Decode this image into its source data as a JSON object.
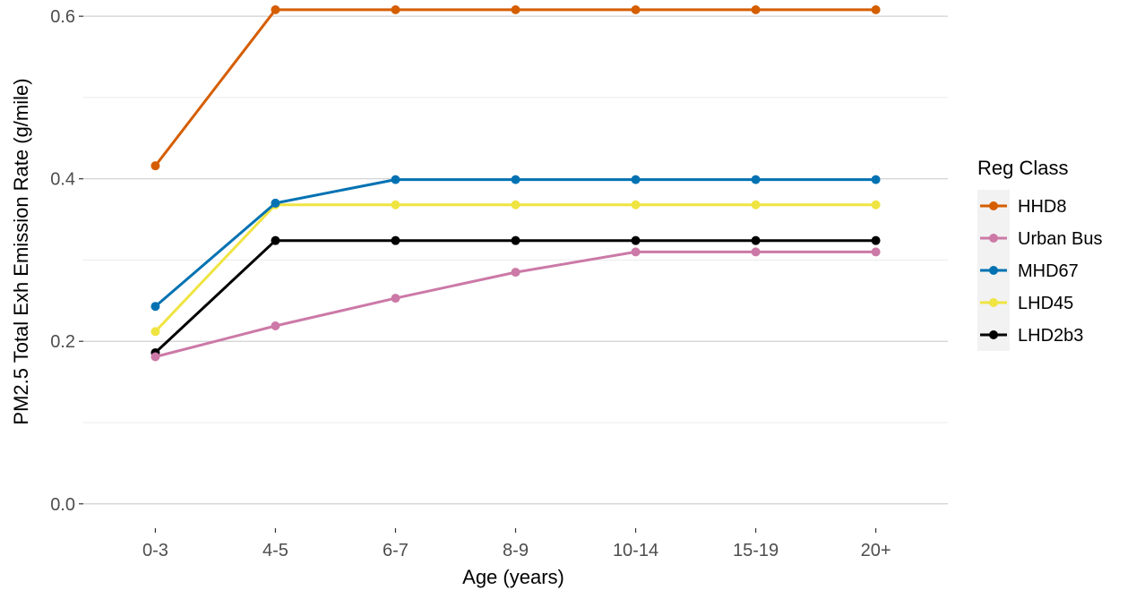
{
  "chart_data": {
    "type": "line",
    "xlabel": "Age (years)",
    "ylabel": "PM2.5 Total Exh Emission Rate (g/mile)",
    "categories": [
      "0-3",
      "4-5",
      "6-7",
      "8-9",
      "10-14",
      "15-19",
      "20+"
    ],
    "ylim": [
      -0.03,
      0.62
    ],
    "yticks": [
      0.0,
      0.2,
      0.4,
      0.6
    ],
    "ytick_labels": [
      "0.0",
      "0.2",
      "0.4",
      "0.6"
    ],
    "grid": true,
    "legend": {
      "title": "Reg Class",
      "position": "right"
    },
    "series": [
      {
        "name": "HHD8",
        "color": "#d55e00",
        "values": [
          0.416,
          0.608,
          0.608,
          0.608,
          0.608,
          0.608,
          0.608
        ]
      },
      {
        "name": "Urban Bus",
        "color": "#cc79a7",
        "values": [
          0.181,
          0.219,
          0.253,
          0.285,
          0.31,
          0.31,
          0.31
        ]
      },
      {
        "name": "MHD67",
        "color": "#0072b2",
        "values": [
          0.243,
          0.37,
          0.399,
          0.399,
          0.399,
          0.399,
          0.399
        ]
      },
      {
        "name": "LHD45",
        "color": "#f0e442",
        "values": [
          0.212,
          0.368,
          0.368,
          0.368,
          0.368,
          0.368,
          0.368
        ]
      },
      {
        "name": "LHD2b3",
        "color": "#000000",
        "values": [
          0.186,
          0.324,
          0.324,
          0.324,
          0.324,
          0.324,
          0.324
        ]
      }
    ]
  }
}
